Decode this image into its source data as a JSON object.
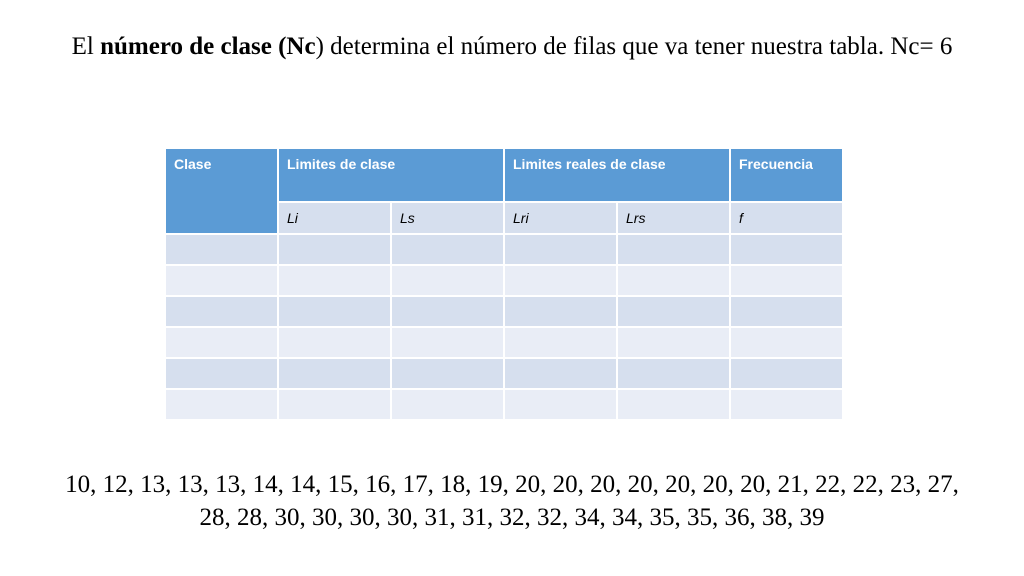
{
  "title": {
    "part1": "El ",
    "bold": "número de clase (Nc",
    "part2": ") determina el número de filas que va tener nuestra tabla. Nc= 6"
  },
  "table": {
    "headers": {
      "clase": "Clase",
      "limites_clase": "Limites de clase",
      "limites_reales": "Limites reales de clase",
      "frecuencia": "Frecuencia"
    },
    "subheaders": {
      "li": "Li",
      "ls": "Ls",
      "lri": "Lri",
      "lrs": "Lrs",
      "f": "f"
    },
    "empty_rows": 6
  },
  "data_values": "10, 12, 13, 13, 13, 14, 14, 15, 16, 17, 18, 19, 20, 20, 20, 20, 20, 20, 20, 21, 22, 22, 23, 27, 28, 28, 30, 30, 30, 30, 31, 31, 32, 32, 34, 34, 35, 35, 36, 38, 39",
  "colors": {
    "header": "#5b9bd5",
    "row_light": "#e9edf6",
    "row_dark": "#d6dfee"
  }
}
